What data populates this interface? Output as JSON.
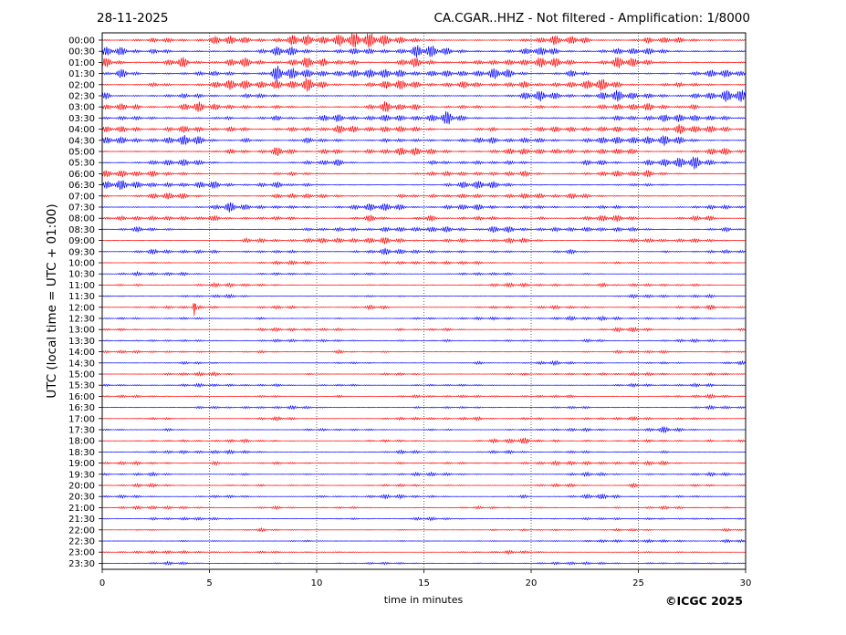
{
  "header": {
    "date": "28-11-2025",
    "title": "CA.CGAR..HHZ - Not filtered - Amplification: 1/8000"
  },
  "footer": {
    "copyright": "©ICGC 2025"
  },
  "colors": {
    "even_trace": "#ff0000",
    "odd_trace": "#0000ff",
    "axis": "#000000",
    "grid": "#000000"
  },
  "chart_data": {
    "type": "line",
    "subtype": "helicorder",
    "title": "CA.CGAR..HHZ - Not filtered - Amplification: 1/8000",
    "xlabel": "time in minutes",
    "ylabel": "UTC (local time = UTC + 01:00)",
    "xlim": [
      0,
      30
    ],
    "x_ticks": [
      0,
      5,
      10,
      15,
      20,
      25,
      30
    ],
    "grid": "vertical dotted at x ticks",
    "row_labels": [
      "00:00",
      "00:30",
      "01:00",
      "01:30",
      "02:00",
      "02:30",
      "03:00",
      "03:30",
      "04:00",
      "04:30",
      "05:00",
      "05:30",
      "06:00",
      "06:30",
      "07:00",
      "07:30",
      "08:00",
      "08:30",
      "09:00",
      "09:30",
      "10:00",
      "10:30",
      "11:00",
      "11:30",
      "12:00",
      "12:30",
      "13:00",
      "13:30",
      "14:00",
      "14:30",
      "15:00",
      "15:30",
      "16:00",
      "16:30",
      "17:00",
      "17:30",
      "18:00",
      "18:30",
      "19:00",
      "19:30",
      "20:00",
      "20:30",
      "21:00",
      "21:30",
      "22:00",
      "22:30",
      "23:00",
      "23:30"
    ],
    "row_colors": "alternating red (even rows) / blue (odd rows)",
    "row_amplitude_level": [
      0.8,
      0.9,
      0.8,
      0.9,
      0.8,
      0.8,
      0.8,
      0.9,
      0.7,
      0.7,
      0.7,
      0.6,
      0.6,
      0.6,
      0.6,
      0.6,
      0.5,
      0.5,
      0.4,
      0.4,
      0.3,
      0.3,
      0.3,
      0.3,
      0.3,
      0.3,
      0.3,
      0.3,
      0.3,
      0.3,
      0.3,
      0.3,
      0.3,
      0.3,
      0.3,
      0.3,
      0.3,
      0.3,
      0.3,
      0.3,
      0.3,
      0.3,
      0.2,
      0.2,
      0.2,
      0.2,
      0.2,
      0.2
    ],
    "events": [
      {
        "row": "12:00",
        "minute": 4.3,
        "note": "spike"
      }
    ]
  }
}
